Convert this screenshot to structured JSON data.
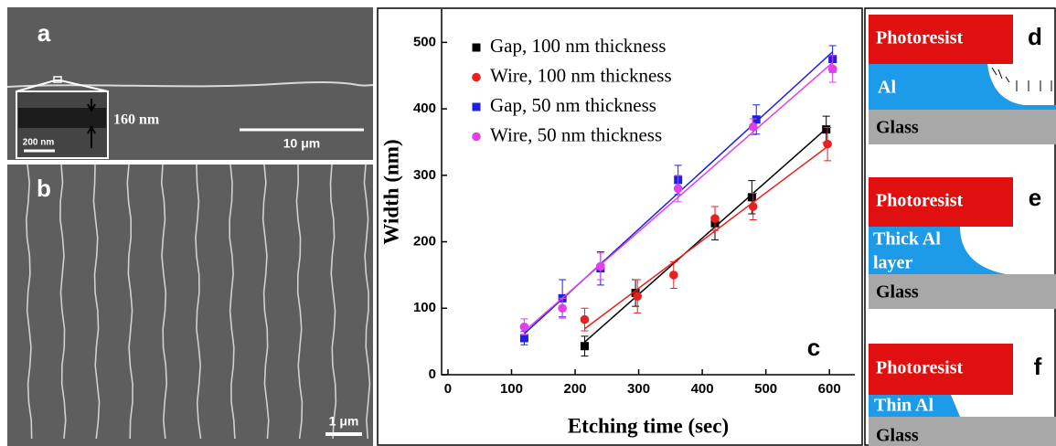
{
  "panels": {
    "a": {
      "letter": "a",
      "inset_size": "160 nm",
      "inset_scale": "200 nm",
      "scale": "10 μm"
    },
    "b": {
      "letter": "b",
      "scale": "1 μm"
    },
    "d": {
      "letter": "d",
      "top": "Photoresist",
      "middle": "Al",
      "bottom": "Glass"
    },
    "e": {
      "letter": "e",
      "top": "Photoresist",
      "middle": [
        "Thick Al",
        "layer"
      ],
      "bottom": "Glass"
    },
    "f": {
      "letter": "f",
      "top": "Photoresist",
      "middle": "Thin Al",
      "bottom": "Glass"
    }
  },
  "chart_data": {
    "type": "scatter",
    "letter": "c",
    "x_label": "Etching time (sec)",
    "y_label": "Width (nm)",
    "xlim": [
      -10,
      640
    ],
    "ylim": [
      0,
      550
    ],
    "xticks": [
      0,
      100,
      200,
      300,
      400,
      500,
      600
    ],
    "yticks": [
      0,
      100,
      200,
      300,
      400,
      500
    ],
    "fit_lines": true,
    "series": [
      {
        "name": "Gap, 100 nm thickness",
        "color": "#000000",
        "marker": "square",
        "x": [
          215,
          295,
          420,
          478,
          595
        ],
        "values": [
          43,
          123,
          228,
          267,
          369
        ],
        "errors": [
          15,
          20,
          25,
          25,
          20
        ]
      },
      {
        "name": "Wire, 100 nm thickness",
        "color": "#e8201e",
        "marker": "circle",
        "x": [
          215,
          298,
          355,
          420,
          480,
          597
        ],
        "values": [
          83,
          118,
          150,
          235,
          253,
          347
        ],
        "errors": [
          17,
          25,
          20,
          18,
          20,
          25
        ]
      },
      {
        "name": "Gap, 50 nm thickness",
        "color": "#1f1fe0",
        "marker": "square",
        "x": [
          120,
          180,
          240,
          362,
          485,
          605
        ],
        "values": [
          55,
          115,
          160,
          293,
          384,
          475
        ],
        "errors": [
          10,
          28,
          25,
          22,
          22,
          20
        ]
      },
      {
        "name": "Wire, 50 nm thickness",
        "color": "#e040e8",
        "marker": "circle",
        "x": [
          120,
          180,
          240,
          362,
          480,
          605
        ],
        "values": [
          72,
          100,
          163,
          280,
          373,
          460
        ],
        "errors": [
          12,
          15,
          20,
          20,
          12,
          20
        ]
      }
    ]
  }
}
